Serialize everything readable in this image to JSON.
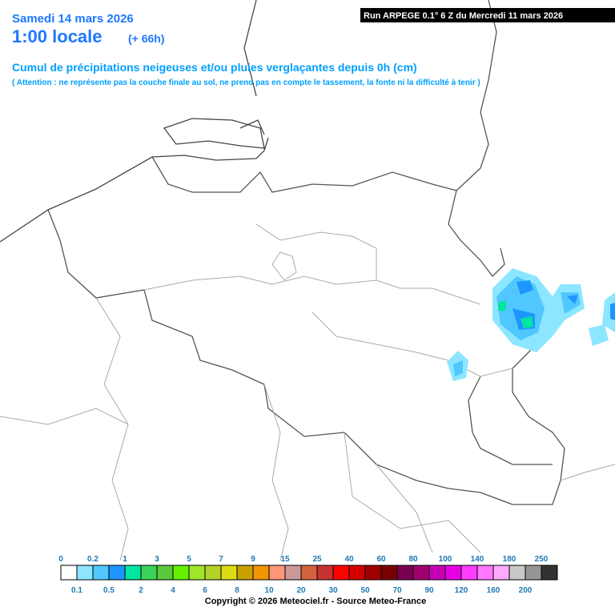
{
  "header": {
    "date": "Samedi 14 mars 2026",
    "time": "1:00 locale",
    "lead": "(+ 66h)",
    "run": "Run ARPEGE 0.1° 6 Z du Mercredi 11 mars 2026",
    "title": "Cumul de précipitations neigeuses et/ou pluies verglaçantes depuis 0h (cm)",
    "note": "( Attention : ne représente pas la couche finale au sol, ne prend pas en compte le tassement, la fonte ni la difficulté à tenir )"
  },
  "legend": {
    "labels": [
      "0",
      "0.1",
      "0.2",
      "0.5",
      "1",
      "2",
      "3",
      "4",
      "5",
      "6",
      "7",
      "8",
      "9",
      "10",
      "15",
      "20",
      "25",
      "30",
      "40",
      "50",
      "60",
      "70",
      "80",
      "90",
      "100",
      "120",
      "140",
      "160",
      "180",
      "200",
      "250"
    ],
    "colors": [
      "#ffffff",
      "#8ce6ff",
      "#50c8ff",
      "#1e96ff",
      "#00e6a0",
      "#3cd25a",
      "#5ac83c",
      "#64f000",
      "#a0e628",
      "#b4d228",
      "#dcdc14",
      "#c8a000",
      "#f09600",
      "#ff9678",
      "#cc9999",
      "#d2643c",
      "#c83232",
      "#ff0000",
      "#d20000",
      "#a00000",
      "#780000",
      "#780050",
      "#a0006e",
      "#c800b4",
      "#e600e6",
      "#ff3cff",
      "#ff78ff",
      "#ffaaff",
      "#c8c8c8",
      "#969696",
      "#323232"
    ]
  },
  "footer": {
    "copyright": "Copyright © 2026 Meteociel.fr - Source Meteo-France"
  }
}
